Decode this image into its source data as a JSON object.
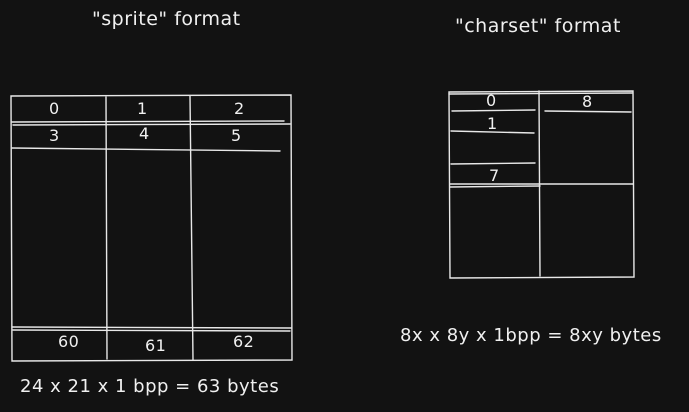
{
  "colors": {
    "background": "#121212",
    "stroke": "#e8e8e8",
    "text": "#f0f0f0"
  },
  "sprite": {
    "title": "\"sprite\" format",
    "cells_top": [
      "0",
      "1",
      "2"
    ],
    "cells_second": [
      "3",
      "4",
      "5"
    ],
    "cells_bottom": [
      "60",
      "61",
      "62"
    ],
    "formula": "24 x 21 x 1 bpp = 63 bytes"
  },
  "charset": {
    "title": "\"charset\" format",
    "cells_left": [
      "0",
      "1",
      "7"
    ],
    "cell_right": "8",
    "formula": "8x x 8y x 1bpp = 8xy bytes"
  }
}
